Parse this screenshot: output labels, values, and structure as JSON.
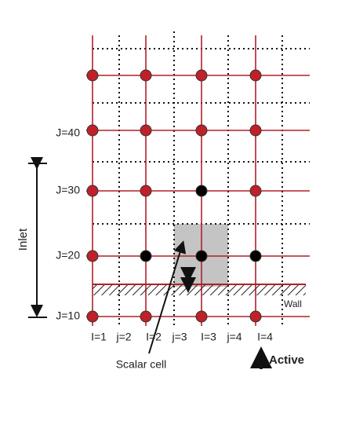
{
  "row_labels": [
    "J=40",
    "J=30",
    "J=20",
    "J=10"
  ],
  "inlet_label": "Inlet",
  "wall_label": "Wall",
  "column_labels": [
    "I=1",
    "j=2",
    "I=2",
    "j=3",
    "I=3",
    "j=4",
    "I=4"
  ],
  "scalar_cell_label": "Scalar cell",
  "active_label": "Active"
}
